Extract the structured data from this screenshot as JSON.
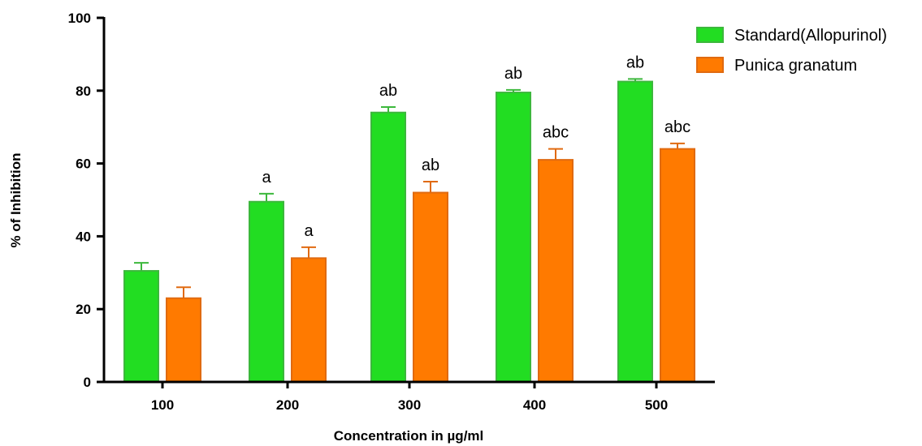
{
  "chart_data": {
    "type": "bar",
    "xlabel": "Concentration in µg/ml",
    "ylabel": "% of Inhibition",
    "categories": [
      "100",
      "200",
      "300",
      "400",
      "500"
    ],
    "ylim": [
      0,
      100
    ],
    "yticks": [
      0,
      20,
      40,
      60,
      80,
      100
    ],
    "grid": false,
    "legend_position": "top-right",
    "series": [
      {
        "name": "Standard(Allopurinol)",
        "color": "#22dd22",
        "border": "#3cb83c",
        "values": [
          30.5,
          49.5,
          74,
          79.5,
          82.5
        ],
        "errors": [
          2.2,
          2.2,
          1.5,
          0.7,
          0.7
        ],
        "annotations": [
          "",
          "a",
          "ab",
          "ab",
          "ab"
        ]
      },
      {
        "name": "Punica granatum",
        "color": "#ff7a00",
        "border": "#e06a10",
        "values": [
          23,
          34,
          52,
          61,
          64
        ],
        "errors": [
          3,
          3,
          3,
          3,
          1.5
        ],
        "annotations": [
          "",
          "a",
          "ab",
          "abc",
          "abc"
        ]
      }
    ]
  }
}
